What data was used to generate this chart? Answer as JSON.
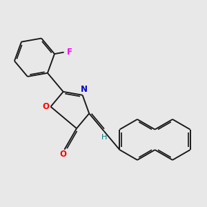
{
  "bg_color": "#e8e8e8",
  "bond_color": "#1a1a1a",
  "atom_colors": {
    "O_ring": "#ff0000",
    "O_carbonyl": "#ff0000",
    "N": "#0000cc",
    "F": "#ff00ff",
    "H": "#008080",
    "C": "#1a1a1a"
  },
  "figsize": [
    3.0,
    3.0
  ],
  "dpi": 100,
  "lw": 1.4
}
